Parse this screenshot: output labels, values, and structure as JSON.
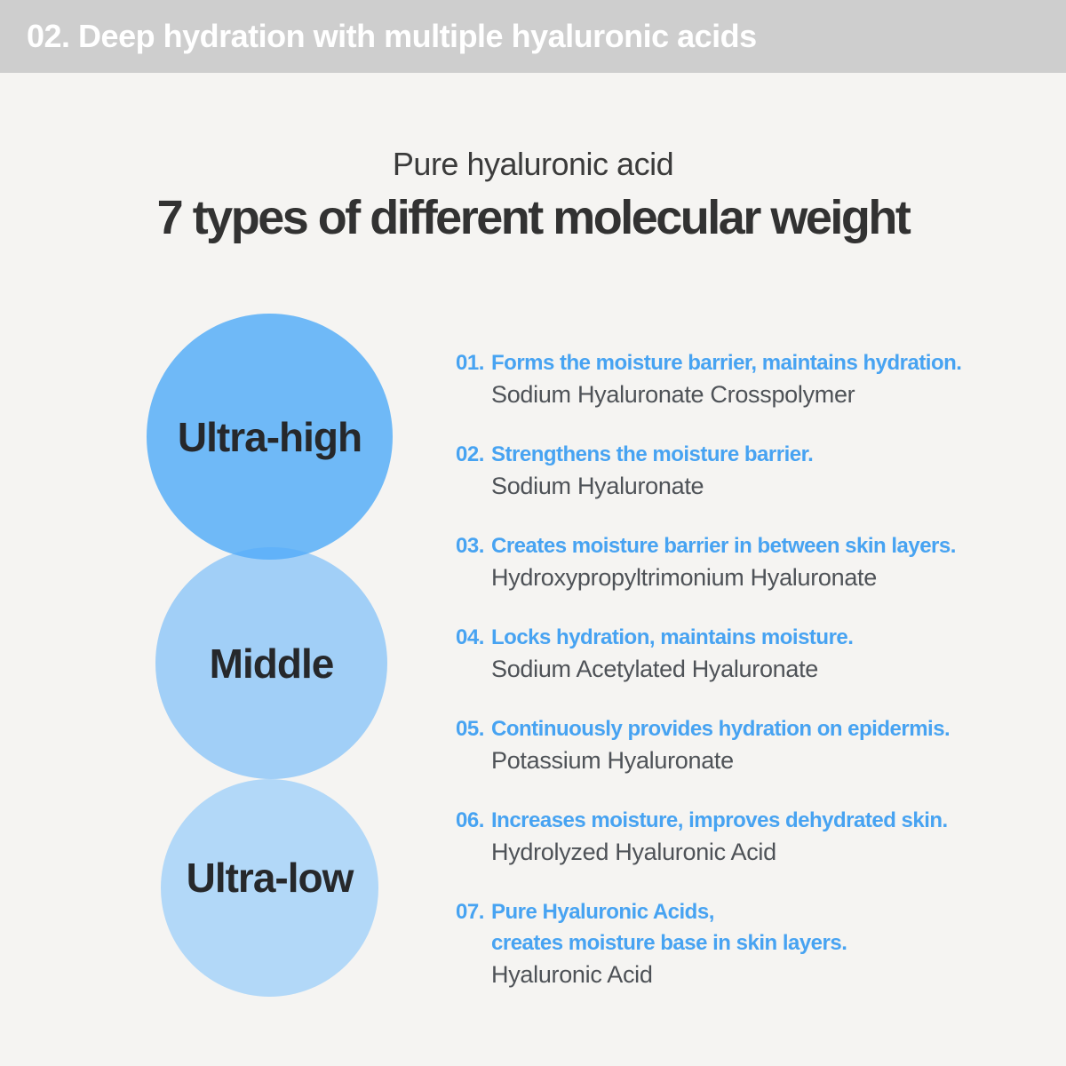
{
  "banner": {
    "label": "02. Deep hydration with multiple hyaluronic acids"
  },
  "title": {
    "subtitle": "Pure hyaluronic acid",
    "heading": "7 types of different molecular weight"
  },
  "circles": [
    {
      "label": "Ultra-high",
      "color": "#6fb9f7"
    },
    {
      "label": "Middle",
      "color": "#a5d1f8"
    },
    {
      "label": "Ultra-low",
      "color": "#b4daf9"
    }
  ],
  "items": [
    {
      "number": "01.",
      "description": "Forms the moisture barrier, maintains hydration.",
      "ingredient": "Sodium Hyaluronate Crosspolymer"
    },
    {
      "number": "02.",
      "description": "Strengthens the moisture barrier.",
      "ingredient": "Sodium Hyaluronate"
    },
    {
      "number": "03.",
      "description": "Creates moisture barrier in between skin layers.",
      "ingredient": "Hydroxypropyltrimonium Hyaluronate"
    },
    {
      "number": "04.",
      "description": "Locks hydration, maintains moisture.",
      "ingredient": "Sodium Acetylated Hyaluronate"
    },
    {
      "number": "05.",
      "description": "Continuously provides hydration on epidermis.",
      "ingredient": "Potassium Hyaluronate"
    },
    {
      "number": "06.",
      "description": "Increases moisture, improves dehydrated skin.",
      "ingredient": "Hydrolyzed Hyaluronic Acid"
    },
    {
      "number": "07.",
      "description": "Pure Hyaluronic Acids,\ncreates moisture base in skin layers.",
      "ingredient": "Hyaluronic Acid"
    }
  ],
  "colors": {
    "banner_background": "#cecece",
    "banner_text": "#ffffff",
    "page_background": "#f5f4f2",
    "heading_text": "#323232",
    "subtitle_text": "#3b3b3b",
    "accent_blue": "#47a3f2",
    "ingredient_text": "#4e5257",
    "circle_label": "#26282b",
    "circle_high": "#6fb9f7",
    "circle_middle": "#a5d1f8",
    "circle_low": "#b4daf9"
  }
}
